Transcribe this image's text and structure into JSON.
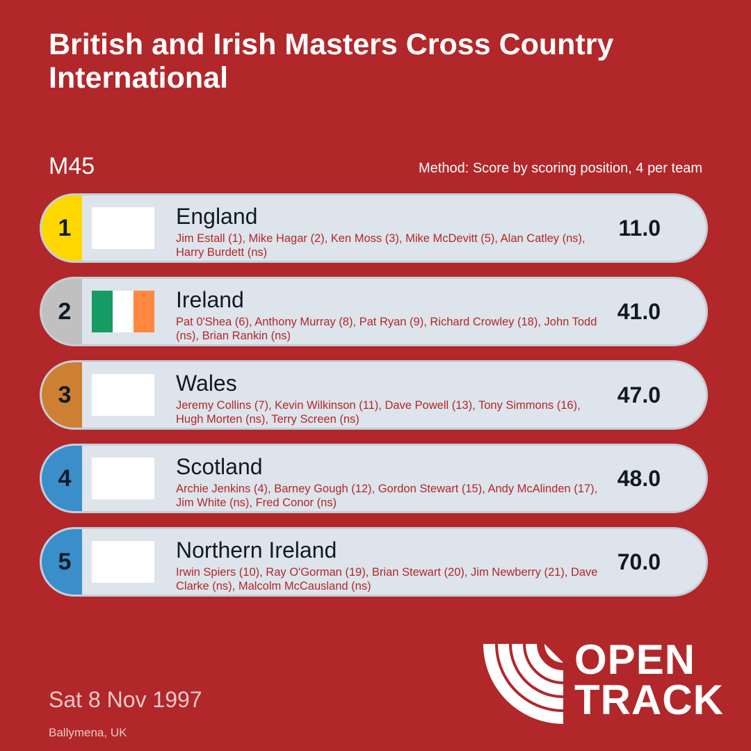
{
  "title": "British and Irish Masters Cross Country International",
  "category": "M45",
  "method": "Method: Score by scoring position, 4 per team",
  "teams": [
    {
      "rank": "1",
      "name": "England",
      "members": "Jim Estall (1), Mike Hagar (2), Ken Moss (3), Mike McDevitt (5), Alan Catley (ns), Harry Burdett (ns)",
      "score": "11.0",
      "badge_color": "#ffd700",
      "flag": "blank"
    },
    {
      "rank": "2",
      "name": "Ireland",
      "members": "Pat 0'Shea (6), Anthony Murray (8), Pat Ryan (9), Richard Crowley (18), John Todd (ns), Brian Rankin (ns)",
      "score": "41.0",
      "badge_color": "#c0c0c0",
      "flag": "ireland"
    },
    {
      "rank": "3",
      "name": "Wales",
      "members": "Jeremy Collins (7), Kevin Wilkinson (11), Dave Powell (13), Tony Simmons (16), Hugh Morten (ns), Terry Screen (ns)",
      "score": "47.0",
      "badge_color": "#cd7f32",
      "flag": "blank"
    },
    {
      "rank": "4",
      "name": "Scotland",
      "members": "Archie Jenkins (4), Barney Gough (12), Gordon Stewart (15), Andy McAlinden (17), Jim White (ns), Fred Conor (ns)",
      "score": "48.0",
      "badge_color": "#3a8fcb",
      "flag": "blank"
    },
    {
      "rank": "5",
      "name": "Northern Ireland",
      "members": "Irwin Spiers (10), Ray O'Gorman (19), Brian Stewart (20), Jim Newberry (21), Dave Clarke (ns), Malcolm McCausland (ns)",
      "score": "70.0",
      "badge_color": "#3a8fcb",
      "flag": "blank"
    }
  ],
  "date": "Sat 8 Nov 1997",
  "venue": "Ballymena, UK",
  "logo": {
    "line1": "OPEN",
    "line2": "TRACK"
  },
  "colors": {
    "background": "#b22729",
    "card": "#dde4eb",
    "ireland_green": "#169b62",
    "ireland_orange": "#ff883e"
  }
}
